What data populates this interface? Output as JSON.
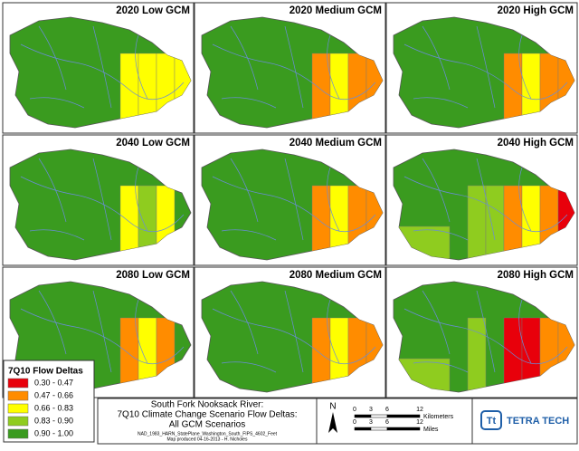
{
  "panels": [
    {
      "title": "2020 Low GCM"
    },
    {
      "title": "2020 Medium GCM"
    },
    {
      "title": "2020 High GCM"
    },
    {
      "title": "2040 Low GCM"
    },
    {
      "title": "2040 Medium GCM"
    },
    {
      "title": "2040 High GCM"
    },
    {
      "title": "2080 Low GCM"
    },
    {
      "title": "2080 Medium GCM"
    },
    {
      "title": "2080 High GCM"
    }
  ],
  "legend": {
    "title": "7Q10 Flow Deltas",
    "items": [
      {
        "label": "0.30 - 0.47",
        "color": "#e8000b"
      },
      {
        "label": "0.47 - 0.66",
        "color": "#ff8c00"
      },
      {
        "label": "0.66 - 0.83",
        "color": "#ffff00"
      },
      {
        "label": "0.83 - 0.90",
        "color": "#8fcc1f"
      },
      {
        "label": "0.90 - 1.00",
        "color": "#3a9b1f"
      }
    ]
  },
  "title_block": {
    "lines": [
      "South Fork Nooksack River:",
      "7Q10 Climate Change Scenario Flow Deltas:",
      "All GCM Scenarios"
    ],
    "projection": "NAD_1983_HARN_StatePlane_Washington_South_FIPS_4602_Feet",
    "credit": "Map produced 04-16-2013 - H. Nicholes"
  },
  "scale_bar": {
    "north": "N",
    "km": {
      "ticks": [
        "0",
        "3",
        "6",
        "12"
      ],
      "unit": "Kilometers"
    },
    "mi": {
      "ticks": [
        "0",
        "3",
        "6",
        "12"
      ],
      "unit": "Miles"
    }
  },
  "logo": {
    "mark": "Tt",
    "name": "TETRA TECH"
  }
}
